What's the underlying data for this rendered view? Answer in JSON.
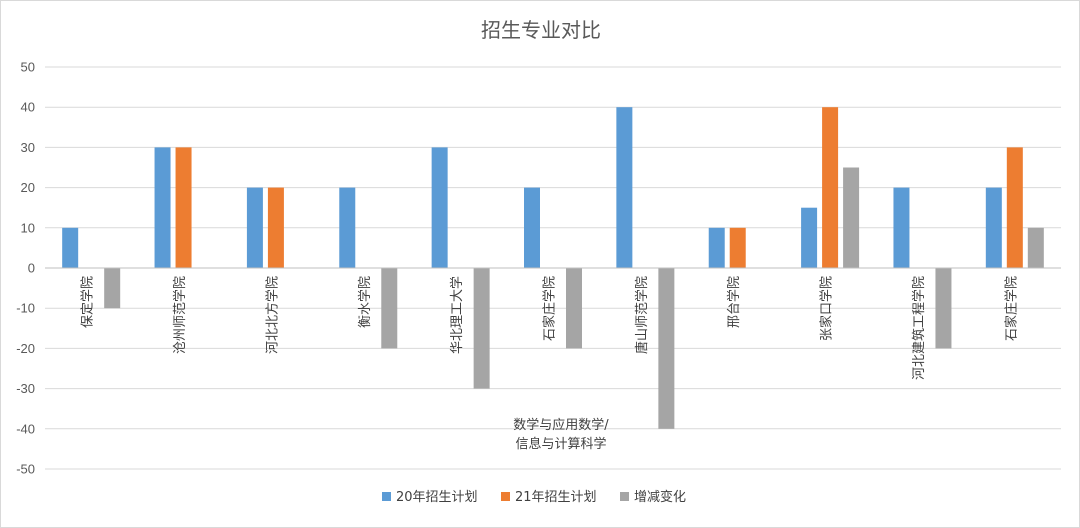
{
  "chart_data": {
    "type": "bar",
    "title": "招生专业对比",
    "xlabel": "",
    "ylabel": "",
    "ylim": [
      -50,
      50
    ],
    "yticks": [
      50,
      40,
      30,
      20,
      10,
      0,
      -10,
      -20,
      -30,
      -40,
      -50
    ],
    "grid": true,
    "legend_position": "bottom",
    "categories": [
      "保定学院",
      "沧州师范学院",
      "河北北方学院",
      "衡水学院",
      "华北理工大学",
      "石家庄学院",
      "唐山师范学院",
      "邢台学院",
      "张家口学院",
      "河北建筑工程学院",
      "石家庄学院"
    ],
    "series": [
      {
        "name": "20年招生计划",
        "color": "#5b9bd5",
        "values": [
          10,
          30,
          20,
          20,
          30,
          20,
          40,
          10,
          15,
          20,
          20
        ]
      },
      {
        "name": "21年招生计划",
        "color": "#ed7d31",
        "values": [
          0,
          30,
          20,
          0,
          0,
          0,
          0,
          10,
          40,
          0,
          30
        ]
      },
      {
        "name": "增减变化",
        "color": "#a5a5a5",
        "values": [
          -10,
          0,
          0,
          -20,
          -30,
          -20,
          -40,
          0,
          25,
          -20,
          10
        ]
      }
    ],
    "annotation": [
      "数学与应用数学/",
      "信息与计算科学"
    ]
  }
}
